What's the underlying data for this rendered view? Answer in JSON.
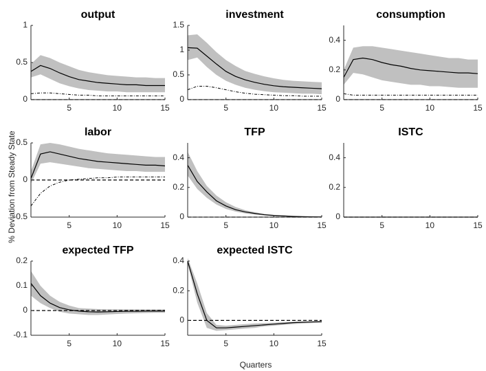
{
  "ylabel": "% Deviation from Steady State",
  "xlabel": "Quarters",
  "chart_data": [
    {
      "type": "line",
      "title": "output",
      "x": [
        1,
        2,
        3,
        4,
        5,
        6,
        7,
        8,
        9,
        10,
        11,
        12,
        13,
        14,
        15
      ],
      "xlim": [
        1,
        15
      ],
      "xticks": [
        5,
        10,
        15
      ],
      "ylim": [
        0,
        1
      ],
      "yticks": [
        0,
        0.5,
        1
      ],
      "hline": 0,
      "band": {
        "color": "#c0c0c0",
        "lower": [
          0.3,
          0.34,
          0.28,
          0.22,
          0.18,
          0.15,
          0.13,
          0.12,
          0.11,
          0.11,
          0.1,
          0.1,
          0.1,
          0.1,
          0.1
        ],
        "upper": [
          0.48,
          0.6,
          0.56,
          0.5,
          0.45,
          0.4,
          0.37,
          0.35,
          0.33,
          0.32,
          0.31,
          0.3,
          0.3,
          0.29,
          0.29
        ]
      },
      "series": [
        {
          "color": "#000000",
          "style": "solid",
          "values": [
            0.38,
            0.46,
            0.42,
            0.36,
            0.31,
            0.27,
            0.25,
            0.23,
            0.22,
            0.21,
            0.2,
            0.2,
            0.19,
            0.19,
            0.19
          ]
        },
        {
          "color": "#000000",
          "style": "dashdot",
          "values": [
            0.08,
            0.09,
            0.09,
            0.08,
            0.07,
            0.06,
            0.06,
            0.05,
            0.05,
            0.05,
            0.05,
            0.05,
            0.05,
            0.05,
            0.05
          ]
        }
      ]
    },
    {
      "type": "line",
      "title": "investment",
      "x": [
        1,
        2,
        3,
        4,
        5,
        6,
        7,
        8,
        9,
        10,
        11,
        12,
        13,
        14,
        15
      ],
      "xlim": [
        1,
        15
      ],
      "xticks": [
        5,
        10,
        15
      ],
      "ylim": [
        0,
        1.5
      ],
      "yticks": [
        0,
        0.5,
        1,
        1.5
      ],
      "hline": 0,
      "band": {
        "color": "#c0c0c0",
        "lower": [
          0.8,
          0.85,
          0.66,
          0.5,
          0.38,
          0.3,
          0.24,
          0.2,
          0.17,
          0.15,
          0.14,
          0.13,
          0.12,
          0.12,
          0.11
        ],
        "upper": [
          1.3,
          1.32,
          1.15,
          0.96,
          0.8,
          0.68,
          0.58,
          0.52,
          0.47,
          0.43,
          0.4,
          0.38,
          0.37,
          0.36,
          0.35
        ]
      },
      "series": [
        {
          "color": "#000000",
          "style": "solid",
          "values": [
            1.05,
            1.04,
            0.88,
            0.72,
            0.57,
            0.47,
            0.4,
            0.35,
            0.31,
            0.28,
            0.26,
            0.25,
            0.24,
            0.23,
            0.22
          ]
        },
        {
          "color": "#000000",
          "style": "dashdot",
          "values": [
            0.2,
            0.27,
            0.27,
            0.24,
            0.2,
            0.16,
            0.13,
            0.11,
            0.1,
            0.09,
            0.08,
            0.08,
            0.07,
            0.07,
            0.07
          ]
        }
      ]
    },
    {
      "type": "line",
      "title": "consumption",
      "x": [
        1,
        2,
        3,
        4,
        5,
        6,
        7,
        8,
        9,
        10,
        11,
        12,
        13,
        14,
        15
      ],
      "xlim": [
        1,
        15
      ],
      "xticks": [
        5,
        10,
        15
      ],
      "ylim": [
        0,
        0.5
      ],
      "yticks": [
        0,
        0.2,
        0.4
      ],
      "hline": 0,
      "band": {
        "color": "#c0c0c0",
        "lower": [
          0.1,
          0.18,
          0.17,
          0.15,
          0.13,
          0.12,
          0.11,
          0.1,
          0.1,
          0.09,
          0.09,
          0.085,
          0.08,
          0.08,
          0.08
        ],
        "upper": [
          0.2,
          0.35,
          0.36,
          0.36,
          0.35,
          0.34,
          0.33,
          0.32,
          0.31,
          0.3,
          0.29,
          0.28,
          0.28,
          0.27,
          0.27
        ]
      },
      "series": [
        {
          "color": "#000000",
          "style": "solid",
          "values": [
            0.15,
            0.27,
            0.28,
            0.27,
            0.25,
            0.235,
            0.225,
            0.21,
            0.2,
            0.195,
            0.19,
            0.185,
            0.18,
            0.18,
            0.175
          ]
        },
        {
          "color": "#000000",
          "style": "dashdot",
          "values": [
            0.04,
            0.03,
            0.03,
            0.03,
            0.03,
            0.03,
            0.03,
            0.03,
            0.03,
            0.03,
            0.03,
            0.03,
            0.03,
            0.03,
            0.03
          ]
        }
      ]
    },
    {
      "type": "line",
      "title": "labor",
      "x": [
        1,
        2,
        3,
        4,
        5,
        6,
        7,
        8,
        9,
        10,
        11,
        12,
        13,
        14,
        15
      ],
      "xlim": [
        1,
        15
      ],
      "xticks": [
        5,
        10,
        15
      ],
      "ylim": [
        -0.5,
        0.5
      ],
      "yticks": [
        -0.5,
        0,
        0.5
      ],
      "hline": 0,
      "band": {
        "color": "#c0c0c0",
        "lower": [
          -0.05,
          0.22,
          0.24,
          0.22,
          0.2,
          0.18,
          0.16,
          0.15,
          0.14,
          0.13,
          0.12,
          0.12,
          0.11,
          0.11,
          0.11
        ],
        "upper": [
          0.12,
          0.48,
          0.5,
          0.48,
          0.45,
          0.42,
          0.4,
          0.38,
          0.36,
          0.35,
          0.34,
          0.33,
          0.32,
          0.31,
          0.31
        ]
      },
      "series": [
        {
          "color": "#000000",
          "style": "solid",
          "values": [
            0.02,
            0.35,
            0.38,
            0.35,
            0.32,
            0.29,
            0.27,
            0.25,
            0.24,
            0.23,
            0.22,
            0.21,
            0.2,
            0.2,
            0.19
          ]
        },
        {
          "color": "#000000",
          "style": "dashdot",
          "values": [
            -0.35,
            -0.18,
            -0.08,
            -0.03,
            0,
            0.01,
            0.02,
            0.03,
            0.03,
            0.04,
            0.04,
            0.04,
            0.04,
            0.04,
            0.04
          ]
        }
      ]
    },
    {
      "type": "line",
      "title": "TFP",
      "x": [
        1,
        2,
        3,
        4,
        5,
        6,
        7,
        8,
        9,
        10,
        11,
        12,
        13,
        14,
        15
      ],
      "xlim": [
        1,
        15
      ],
      "xticks": [
        5,
        10,
        15
      ],
      "ylim": [
        0,
        0.5
      ],
      "yticks": [
        0,
        0.2,
        0.4
      ],
      "hline": 0,
      "band": {
        "color": "#c0c0c0",
        "lower": [
          0.28,
          0.19,
          0.13,
          0.085,
          0.055,
          0.037,
          0.025,
          0.017,
          0.011,
          0.007,
          0.005,
          0.003,
          0.002,
          0.001,
          0
        ],
        "upper": [
          0.44,
          0.31,
          0.21,
          0.145,
          0.1,
          0.068,
          0.047,
          0.033,
          0.022,
          0.015,
          0.01,
          0.007,
          0.005,
          0.003,
          0.002
        ]
      },
      "series": [
        {
          "color": "#000000",
          "style": "solid",
          "values": [
            0.35,
            0.24,
            0.17,
            0.11,
            0.075,
            0.05,
            0.035,
            0.025,
            0.016,
            0.011,
            0.008,
            0.005,
            0.003,
            0.002,
            0.001
          ]
        }
      ]
    },
    {
      "type": "line",
      "title": "ISTC",
      "x": [
        1,
        2,
        3,
        4,
        5,
        6,
        7,
        8,
        9,
        10,
        11,
        12,
        13,
        14,
        15
      ],
      "xlim": [
        1,
        15
      ],
      "xticks": [
        5,
        10,
        15
      ],
      "ylim": [
        0,
        0.5
      ],
      "yticks": [
        0,
        0.2,
        0.4
      ],
      "hline": 0,
      "series": [
        {
          "color": "#000000",
          "style": "solid",
          "values": [
            0,
            0,
            0,
            0,
            0,
            0,
            0,
            0,
            0,
            0,
            0,
            0,
            0,
            0,
            0
          ]
        }
      ]
    },
    {
      "type": "line",
      "title": "expected TFP",
      "x": [
        1,
        2,
        3,
        4,
        5,
        6,
        7,
        8,
        9,
        10,
        11,
        12,
        13,
        14,
        15
      ],
      "xlim": [
        1,
        15
      ],
      "xticks": [
        5,
        10,
        15
      ],
      "ylim": [
        -0.1,
        0.2
      ],
      "yticks": [
        -0.1,
        0,
        0.1,
        0.2
      ],
      "hline": 0,
      "band": {
        "color": "#c0c0c0",
        "lower": [
          0.06,
          0.03,
          0.01,
          -0.005,
          -0.012,
          -0.015,
          -0.018,
          -0.018,
          -0.016,
          -0.014,
          -0.012,
          -0.011,
          -0.01,
          -0.009,
          -0.009
        ],
        "upper": [
          0.16,
          0.1,
          0.06,
          0.035,
          0.02,
          0.01,
          0.008,
          0.006,
          0.005,
          0.005,
          0.005,
          0.005,
          0.005,
          0.005,
          0.005
        ]
      },
      "series": [
        {
          "color": "#000000",
          "style": "solid",
          "values": [
            0.11,
            0.06,
            0.03,
            0.012,
            0.003,
            -0.002,
            -0.005,
            -0.006,
            -0.005,
            -0.004,
            -0.003,
            -0.003,
            -0.002,
            -0.002,
            -0.002
          ]
        }
      ]
    },
    {
      "type": "line",
      "title": "expected ISTC",
      "x": [
        1,
        2,
        3,
        4,
        5,
        6,
        7,
        8,
        9,
        10,
        11,
        12,
        13,
        14,
        15
      ],
      "xlim": [
        1,
        15
      ],
      "xticks": [
        5,
        10,
        15
      ],
      "ylim": [
        -0.1,
        0.4
      ],
      "yticks": [
        0,
        0.2,
        0.4
      ],
      "hline": 0,
      "band": {
        "color": "#c0c0c0",
        "lower": [
          0.38,
          0.12,
          -0.05,
          -0.07,
          -0.065,
          -0.06,
          -0.055,
          -0.05,
          -0.04,
          -0.035,
          -0.03,
          -0.025,
          -0.02,
          -0.018,
          -0.015
        ],
        "upper": [
          0.42,
          0.25,
          0.05,
          -0.03,
          -0.035,
          -0.03,
          -0.025,
          -0.02,
          -0.018,
          -0.015,
          -0.012,
          -0.01,
          -0.008,
          -0.006,
          -0.004
        ]
      },
      "series": [
        {
          "color": "#000000",
          "style": "solid",
          "values": [
            0.4,
            0.18,
            0,
            -0.05,
            -0.05,
            -0.045,
            -0.04,
            -0.035,
            -0.03,
            -0.025,
            -0.02,
            -0.015,
            -0.012,
            -0.01,
            -0.008
          ]
        }
      ]
    }
  ]
}
